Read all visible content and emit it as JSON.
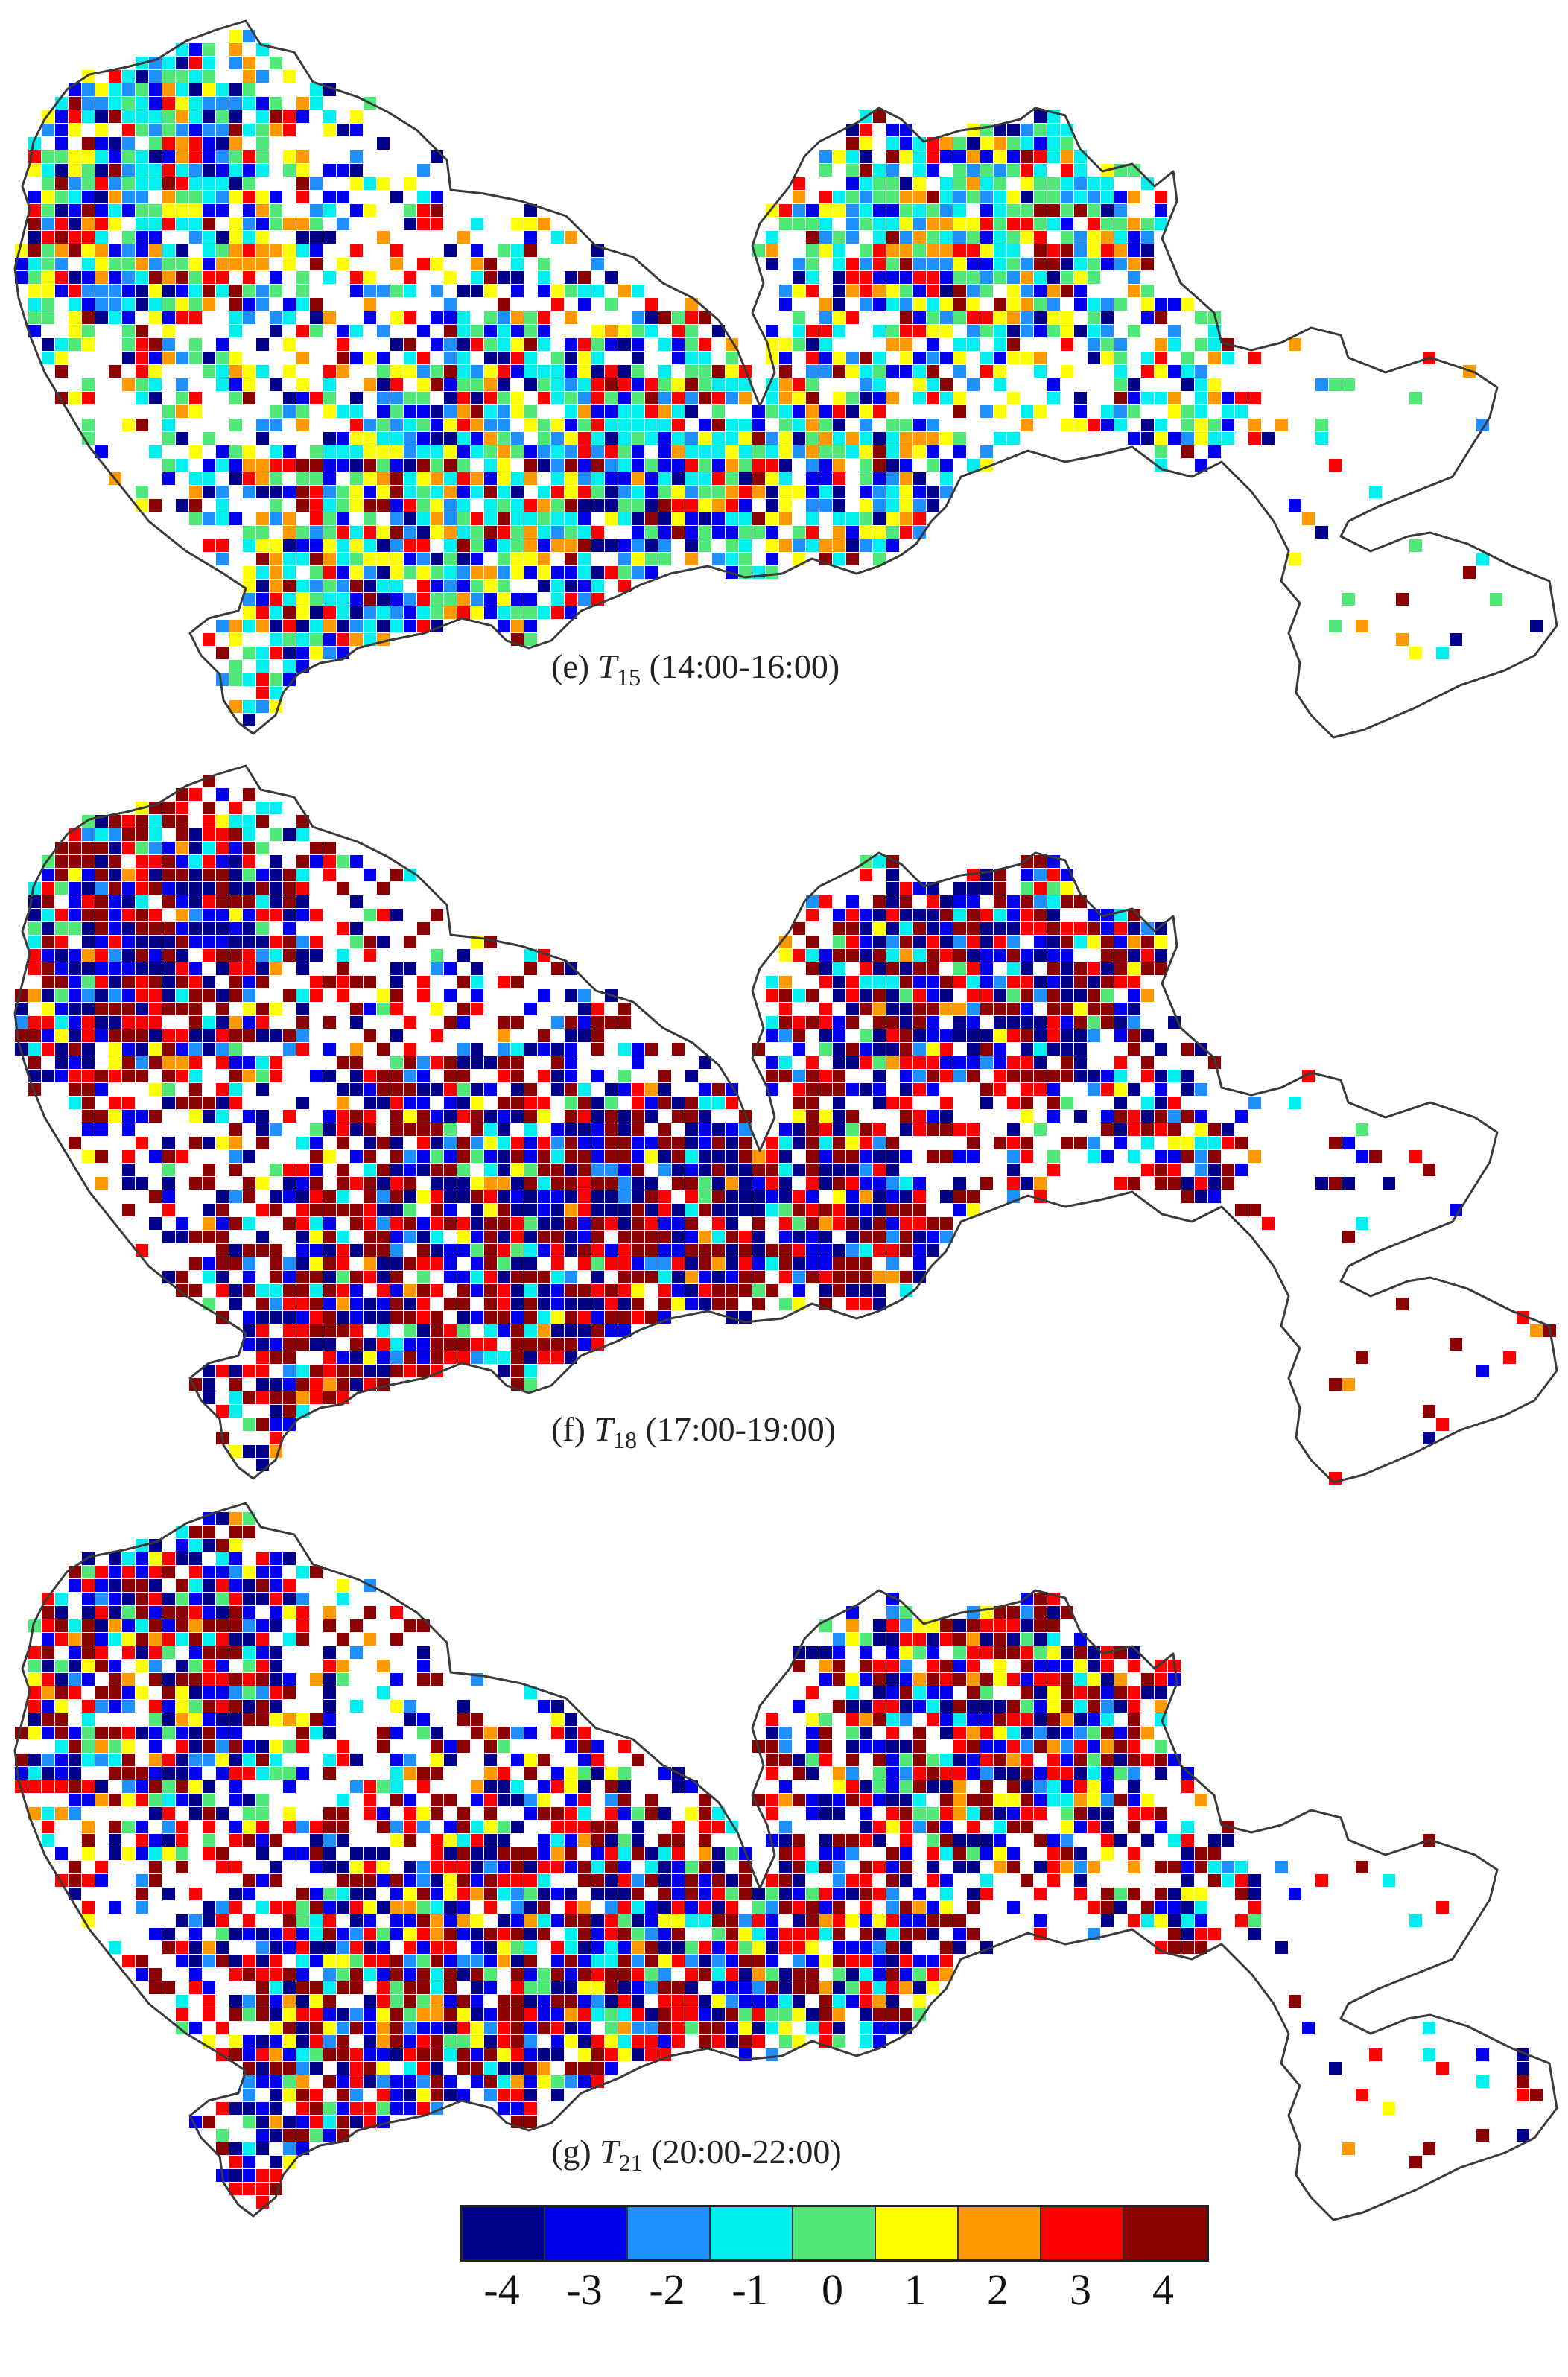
{
  "panels": [
    {
      "letter": "(e)",
      "symbol": "T",
      "sub": "15",
      "range": "(14:00-16:00)"
    },
    {
      "letter": "(f)",
      "symbol": "T",
      "sub": "18",
      "range": "(17:00-19:00)"
    },
    {
      "letter": "(g)",
      "symbol": "T",
      "sub": "21",
      "range": "(20:00-22:00)"
    }
  ],
  "legend": {
    "labels": [
      "-4",
      "-3",
      "-2",
      "-1",
      "0",
      "1",
      "2",
      "3",
      "4"
    ],
    "colors": [
      "#00008b",
      "#0000ee",
      "#1e90ff",
      "#00f0f0",
      "#50e878",
      "#ffff00",
      "#ff9900",
      "#ff0000",
      "#8b0000"
    ]
  },
  "map_style": {
    "outline_color": "#3a3a3a",
    "fill": "#ffffff"
  }
}
